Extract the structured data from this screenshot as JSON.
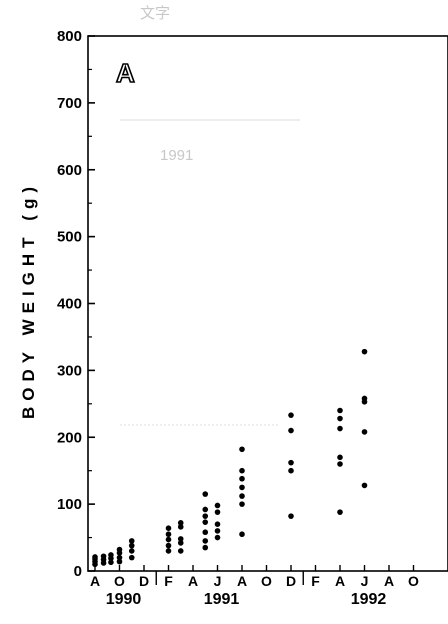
{
  "chart_data": {
    "type": "scatter",
    "panel_label": "A",
    "ylabel": "BODY WEIGHT (g)",
    "xlabel": "",
    "ylim": [
      0,
      800
    ],
    "yticks": [
      0,
      100,
      200,
      300,
      400,
      500,
      600,
      700,
      800
    ],
    "x_months": [
      "A",
      "O",
      "D",
      "F",
      "A",
      "J",
      "A",
      "O",
      "D",
      "F",
      "A",
      "J",
      "A",
      "O"
    ],
    "years": [
      {
        "label": "1990",
        "month_index": 1
      },
      {
        "label": "1991",
        "month_index": 5
      },
      {
        "label": "1992",
        "month_index": 11
      }
    ],
    "year_boundaries_after_month_index": [
      2,
      8
    ],
    "grid": false,
    "points": [
      {
        "m": 0,
        "y": 10
      },
      {
        "m": 0,
        "y": 14
      },
      {
        "m": 0,
        "y": 18
      },
      {
        "m": 0,
        "y": 21
      },
      {
        "m": 0.35,
        "y": 12
      },
      {
        "m": 0.35,
        "y": 17
      },
      {
        "m": 0.35,
        "y": 22
      },
      {
        "m": 0.65,
        "y": 13
      },
      {
        "m": 0.65,
        "y": 19
      },
      {
        "m": 0.65,
        "y": 24
      },
      {
        "m": 1.0,
        "y": 14
      },
      {
        "m": 1.0,
        "y": 20
      },
      {
        "m": 1.0,
        "y": 27
      },
      {
        "m": 1.0,
        "y": 32
      },
      {
        "m": 1.5,
        "y": 20
      },
      {
        "m": 1.5,
        "y": 30
      },
      {
        "m": 1.5,
        "y": 38
      },
      {
        "m": 1.5,
        "y": 45
      },
      {
        "m": 3.0,
        "y": 30
      },
      {
        "m": 3.0,
        "y": 38
      },
      {
        "m": 3.0,
        "y": 47
      },
      {
        "m": 3.0,
        "y": 55
      },
      {
        "m": 3.0,
        "y": 64
      },
      {
        "m": 3.5,
        "y": 30
      },
      {
        "m": 3.5,
        "y": 42
      },
      {
        "m": 3.5,
        "y": 48
      },
      {
        "m": 3.5,
        "y": 66
      },
      {
        "m": 3.5,
        "y": 72
      },
      {
        "m": 4.5,
        "y": 35
      },
      {
        "m": 4.5,
        "y": 45
      },
      {
        "m": 4.5,
        "y": 58
      },
      {
        "m": 4.5,
        "y": 73
      },
      {
        "m": 4.5,
        "y": 82
      },
      {
        "m": 4.5,
        "y": 92
      },
      {
        "m": 4.5,
        "y": 115
      },
      {
        "m": 5.0,
        "y": 50
      },
      {
        "m": 5.0,
        "y": 60
      },
      {
        "m": 5.0,
        "y": 70
      },
      {
        "m": 5.0,
        "y": 88
      },
      {
        "m": 5.0,
        "y": 98
      },
      {
        "m": 6.0,
        "y": 55
      },
      {
        "m": 6.0,
        "y": 100
      },
      {
        "m": 6.0,
        "y": 112
      },
      {
        "m": 6.0,
        "y": 125
      },
      {
        "m": 6.0,
        "y": 138
      },
      {
        "m": 6.0,
        "y": 150
      },
      {
        "m": 6.0,
        "y": 182
      },
      {
        "m": 8.0,
        "y": 82
      },
      {
        "m": 8.0,
        "y": 150
      },
      {
        "m": 8.0,
        "y": 162
      },
      {
        "m": 8.0,
        "y": 210
      },
      {
        "m": 8.0,
        "y": 233
      },
      {
        "m": 10.0,
        "y": 88
      },
      {
        "m": 10.0,
        "y": 160
      },
      {
        "m": 10.0,
        "y": 170
      },
      {
        "m": 10.0,
        "y": 213
      },
      {
        "m": 10.0,
        "y": 228
      },
      {
        "m": 10.0,
        "y": 240
      },
      {
        "m": 11.0,
        "y": 128
      },
      {
        "m": 11.0,
        "y": 208
      },
      {
        "m": 11.0,
        "y": 253
      },
      {
        "m": 11.0,
        "y": 258
      },
      {
        "m": 11.0,
        "y": 328
      }
    ]
  }
}
